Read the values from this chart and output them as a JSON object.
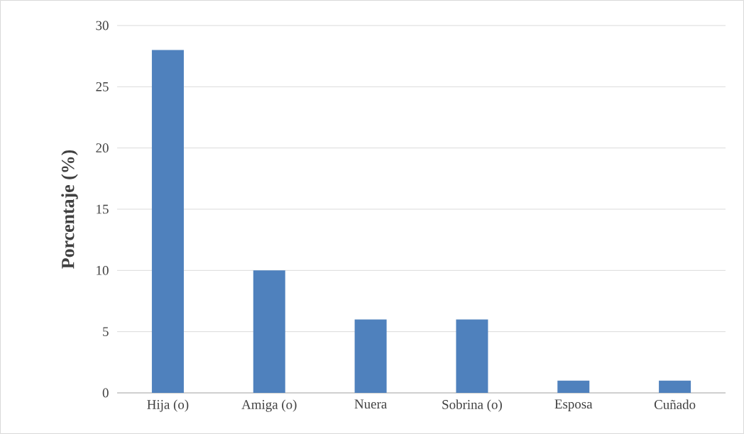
{
  "chart_data": {
    "type": "bar",
    "ylabel": "Porcentaje (%)",
    "categories": [
      "Hija (o)",
      "Amiga (o)",
      "Nuera",
      "Sobrina (o)",
      "Esposa",
      "Cuñado"
    ],
    "values": [
      28,
      10,
      6,
      6,
      1,
      1
    ],
    "color": "#4f81bd",
    "ylim": [
      0,
      30
    ],
    "yticks": [
      0,
      5,
      10,
      15,
      20,
      25,
      30
    ],
    "grid": "y"
  }
}
